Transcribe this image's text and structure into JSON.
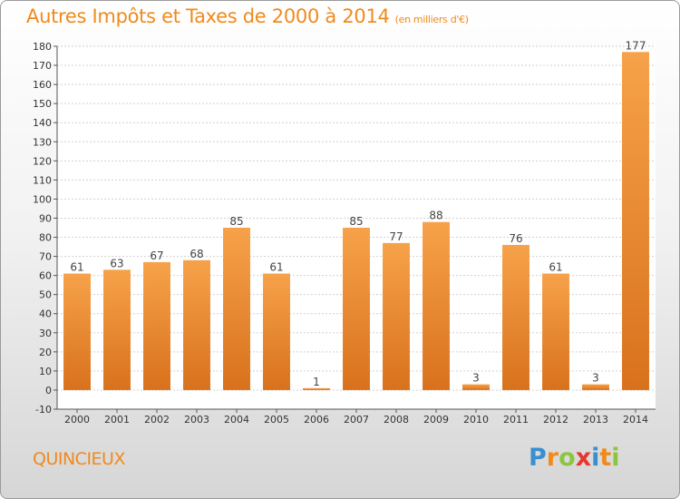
{
  "header": {
    "title": "Autres Impôts et Taxes de 2000 à 2014",
    "unit": "(en milliers d'€)"
  },
  "footer": {
    "commune": "QUINCIEUX",
    "logo": {
      "text": "Proxiti",
      "letters": [
        "P",
        "r",
        "o",
        "x",
        "i",
        "t",
        "i"
      ],
      "colors": [
        "#3b8fd0",
        "#f08a1c",
        "#8cc63f",
        "#e8372c",
        "#3b8fd0",
        "#f08a1c",
        "#8cc63f"
      ]
    }
  },
  "colors": {
    "bar_light": "#f6a24a",
    "bar_dark": "#d9711c",
    "accent": "#f08a1c"
  },
  "chart_data": {
    "type": "bar",
    "title": "Autres Impôts et Taxes de 2000 à 2014",
    "subtitle": "(en milliers d'€)",
    "categories": [
      "2000",
      "2001",
      "2002",
      "2003",
      "2004",
      "2005",
      "2006",
      "2007",
      "2008",
      "2009",
      "2010",
      "2011",
      "2012",
      "2013",
      "2014"
    ],
    "values": [
      61,
      63,
      67,
      68,
      85,
      61,
      1,
      85,
      77,
      88,
      3,
      76,
      61,
      3,
      177
    ],
    "ylim": [
      -10,
      180
    ],
    "yticks": [
      -10,
      0,
      10,
      20,
      30,
      40,
      50,
      60,
      70,
      80,
      90,
      100,
      110,
      120,
      130,
      140,
      150,
      160,
      170,
      180
    ],
    "grid": true,
    "xlabel": "",
    "ylabel": ""
  }
}
